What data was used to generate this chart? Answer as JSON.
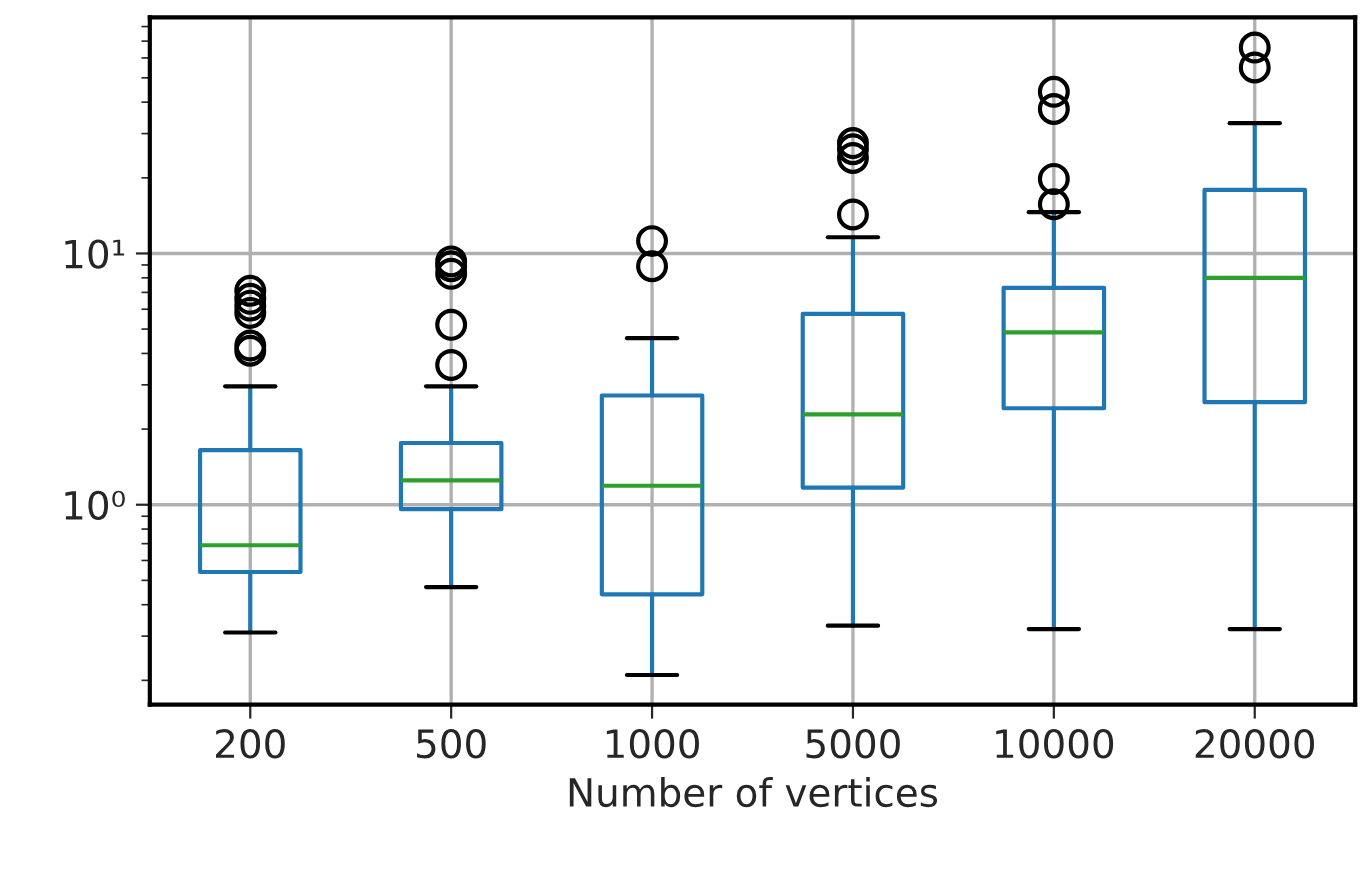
{
  "chart_data": {
    "type": "box",
    "xlabel": "Number of vertices",
    "categories": [
      "200",
      "500",
      "1000",
      "5000",
      "10000",
      "20000"
    ],
    "boxes": [
      {
        "low": 0.31,
        "q1": 0.54,
        "median": 0.69,
        "q3": 1.65,
        "high": 2.96,
        "outliers": [
          4.1,
          4.3,
          5.8,
          6.2,
          6.6,
          7.1
        ]
      },
      {
        "low": 0.47,
        "q1": 0.96,
        "median": 1.25,
        "q3": 1.76,
        "high": 2.96,
        "outliers": [
          3.6,
          5.2,
          8.3,
          8.9,
          9.3
        ]
      },
      {
        "low": 0.21,
        "q1": 0.44,
        "median": 1.19,
        "q3": 2.72,
        "high": 4.6,
        "outliers": [
          8.9,
          11.2
        ]
      },
      {
        "low": 0.33,
        "q1": 1.17,
        "median": 2.29,
        "q3": 5.75,
        "high": 11.6,
        "outliers": [
          14.3,
          24,
          26,
          27.5
        ]
      },
      {
        "low": 0.32,
        "q1": 2.42,
        "median": 4.85,
        "q3": 7.3,
        "high": 14.6,
        "outliers": [
          15.7,
          19.8,
          37.6,
          44
        ]
      },
      {
        "low": 0.32,
        "q1": 2.56,
        "median": 8.0,
        "q3": 17.9,
        "high": 33,
        "outliers": [
          55,
          66
        ]
      }
    ],
    "color": "#1f77b4",
    "log": "y",
    "ylim": [
      0.16,
      87
    ],
    "yticks": [
      {
        "value": 1,
        "label": "10⁰"
      },
      {
        "value": 10,
        "label": "10¹"
      }
    ],
    "grid": true
  }
}
